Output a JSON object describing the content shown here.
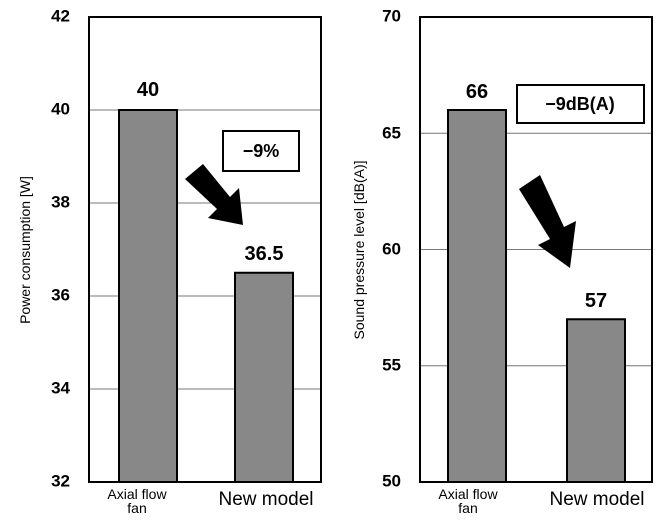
{
  "chart_data": [
    {
      "type": "bar",
      "categories": [
        "Axial flow fan",
        "New model"
      ],
      "values": [
        40,
        36.5
      ],
      "data_labels": [
        "40",
        "36.5"
      ],
      "ylabel": "Power consumption [W]",
      "ylim": [
        32,
        42
      ],
      "yticks": [
        "32",
        "34",
        "36",
        "38",
        "40",
        "42"
      ],
      "annotation": "−9%",
      "grid": true,
      "bar_color": "#888888"
    },
    {
      "type": "bar",
      "categories": [
        "Axial flow fan",
        "New model"
      ],
      "values": [
        66,
        57
      ],
      "data_labels": [
        "66",
        "57"
      ],
      "ylabel": "Sound pressure level [dB(A)]",
      "ylim": [
        50,
        70
      ],
      "yticks": [
        "50",
        "55",
        "60",
        "65",
        "70"
      ],
      "annotation": "−9dB(A)",
      "grid": true,
      "bar_color": "#888888"
    }
  ]
}
